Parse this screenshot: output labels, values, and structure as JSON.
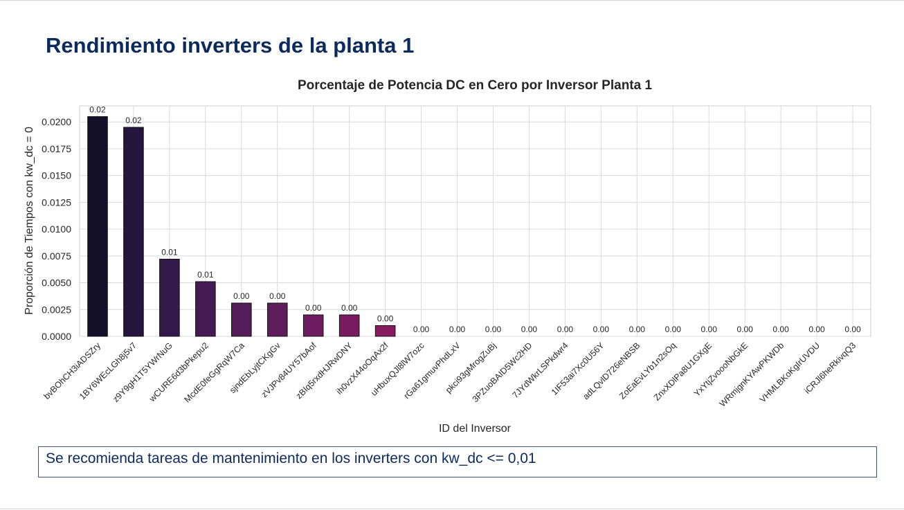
{
  "slide": {
    "title": "Rendimiento inverters de la planta 1",
    "note": "Se recomienda tareas de mantenimiento en los inverters con kw_dc <= 0,01"
  },
  "chart_data": {
    "type": "bar",
    "title": "Porcentaje de Potencia DC en Cero por Inversor Planta 1",
    "xlabel": "ID del Inversor",
    "ylabel": "Proporción de Tiempos con kw_dc = 0",
    "ylim": [
      0,
      0.0215
    ],
    "yticks": [
      "0.0000",
      "0.0025",
      "0.0050",
      "0.0075",
      "0.0100",
      "0.0125",
      "0.0150",
      "0.0175",
      "0.0200"
    ],
    "grid": true,
    "categories": [
      "bvBOhCH3iADSZry",
      "1BY6WEcLGh8j5v7",
      "z9Y9gH1T5YWrNuG",
      "wCURE6d3bPkepu2",
      "McdE0feGgRqW7Ca",
      "sjndEbLyjtCKgGv",
      "zVJPv84UY57bAof",
      "zBIq5rxdHJRwDNY",
      "ih0vzX44oOqAx2f",
      "uHbuxQJl8lW7ozc",
      "rGa61gmuvPhdLxV",
      "pkci93gMrogZuBj",
      "3PZuoBAID5Wc2HD",
      "7JYdWkrLSPkdwr4",
      "1IF53ai7Xc0U56Y",
      "adLQvlD726eNBSB",
      "ZoEaEvLYb1n2sOq",
      "ZnxXDlPa8U1GXgE",
      "YxYtjZvoooNbGkE",
      "WRmjgnKYAwPKWDb",
      "VHMLBKoKgIrUVDU",
      "iCRJl6heRkivqQ3"
    ],
    "values": [
      0.0205,
      0.0195,
      0.0072,
      0.0051,
      0.0031,
      0.0031,
      0.002,
      0.002,
      0.001,
      0,
      0,
      0,
      0,
      0,
      0,
      0,
      0,
      0,
      0,
      0,
      0,
      0
    ],
    "data_labels": [
      "0.02",
      "0.02",
      "0.01",
      "0.01",
      "0.00",
      "0.00",
      "0.00",
      "0.00",
      "0.00",
      "0.00",
      "0.00",
      "0.00",
      "0.00",
      "0.00",
      "0.00",
      "0.00",
      "0.00",
      "0.00",
      "0.00",
      "0.00",
      "0.00",
      "0.00"
    ],
    "colors": [
      "#14102a",
      "#24163d",
      "#341a4a",
      "#441c53",
      "#521d58",
      "#5f1d5c",
      "#6d1c5f",
      "#7b1b60",
      "#8a1a5f"
    ]
  }
}
